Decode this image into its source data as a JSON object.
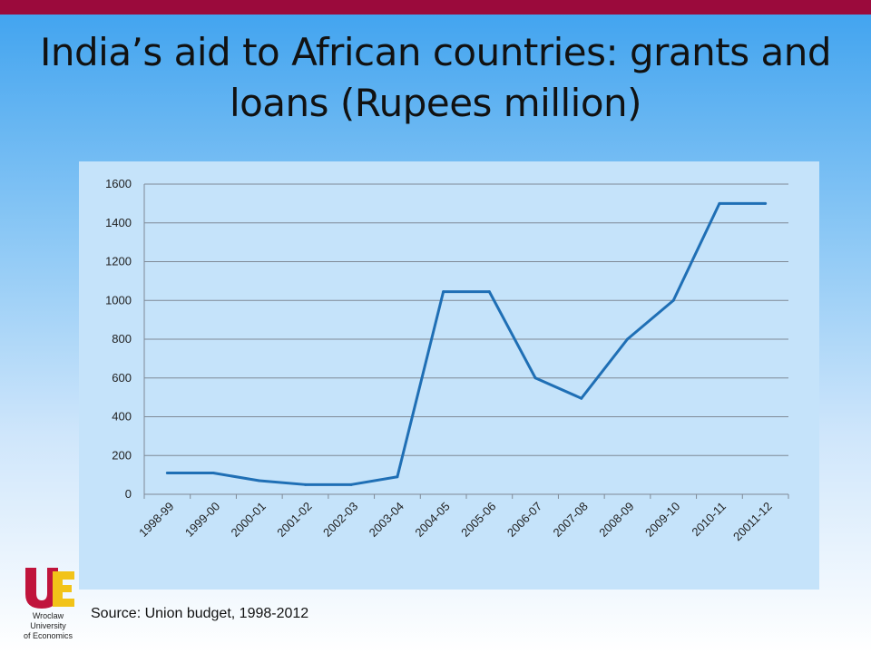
{
  "slide": {
    "title": "India’s aid to African countries: grants and loans (Rupees million)",
    "source": "Source: Union budget, 1998-2012",
    "logo": {
      "letters": "UE",
      "caption": "Wroclaw\nUniversity\nof Economics"
    }
  },
  "colors": {
    "top_bar": "#9b0a3c",
    "line": "#1f6fb5",
    "plot_bg": "#c5e3fa",
    "logo_u": "#c0143c",
    "logo_e": "#f2c318"
  },
  "chart_data": {
    "type": "line",
    "title": "",
    "xlabel": "",
    "ylabel": "",
    "categories": [
      "1998-99",
      "1999-00",
      "2000-01",
      "2001-02",
      "2002-03",
      "2003-04",
      "2004-05",
      "2005-06",
      "2006-07",
      "2007-08",
      "2008-09",
      "2009-10",
      "2010-11",
      "20011-12"
    ],
    "series": [
      {
        "values": [
          110,
          110,
          70,
          50,
          50,
          90,
          1045,
          1045,
          600,
          495,
          800,
          1000,
          1500,
          1500
        ]
      }
    ],
    "ylim": [
      0,
      1600
    ],
    "yticks": [
      0,
      200,
      400,
      600,
      800,
      1000,
      1200,
      1400,
      1600
    ],
    "grid": true,
    "legend": "none"
  }
}
